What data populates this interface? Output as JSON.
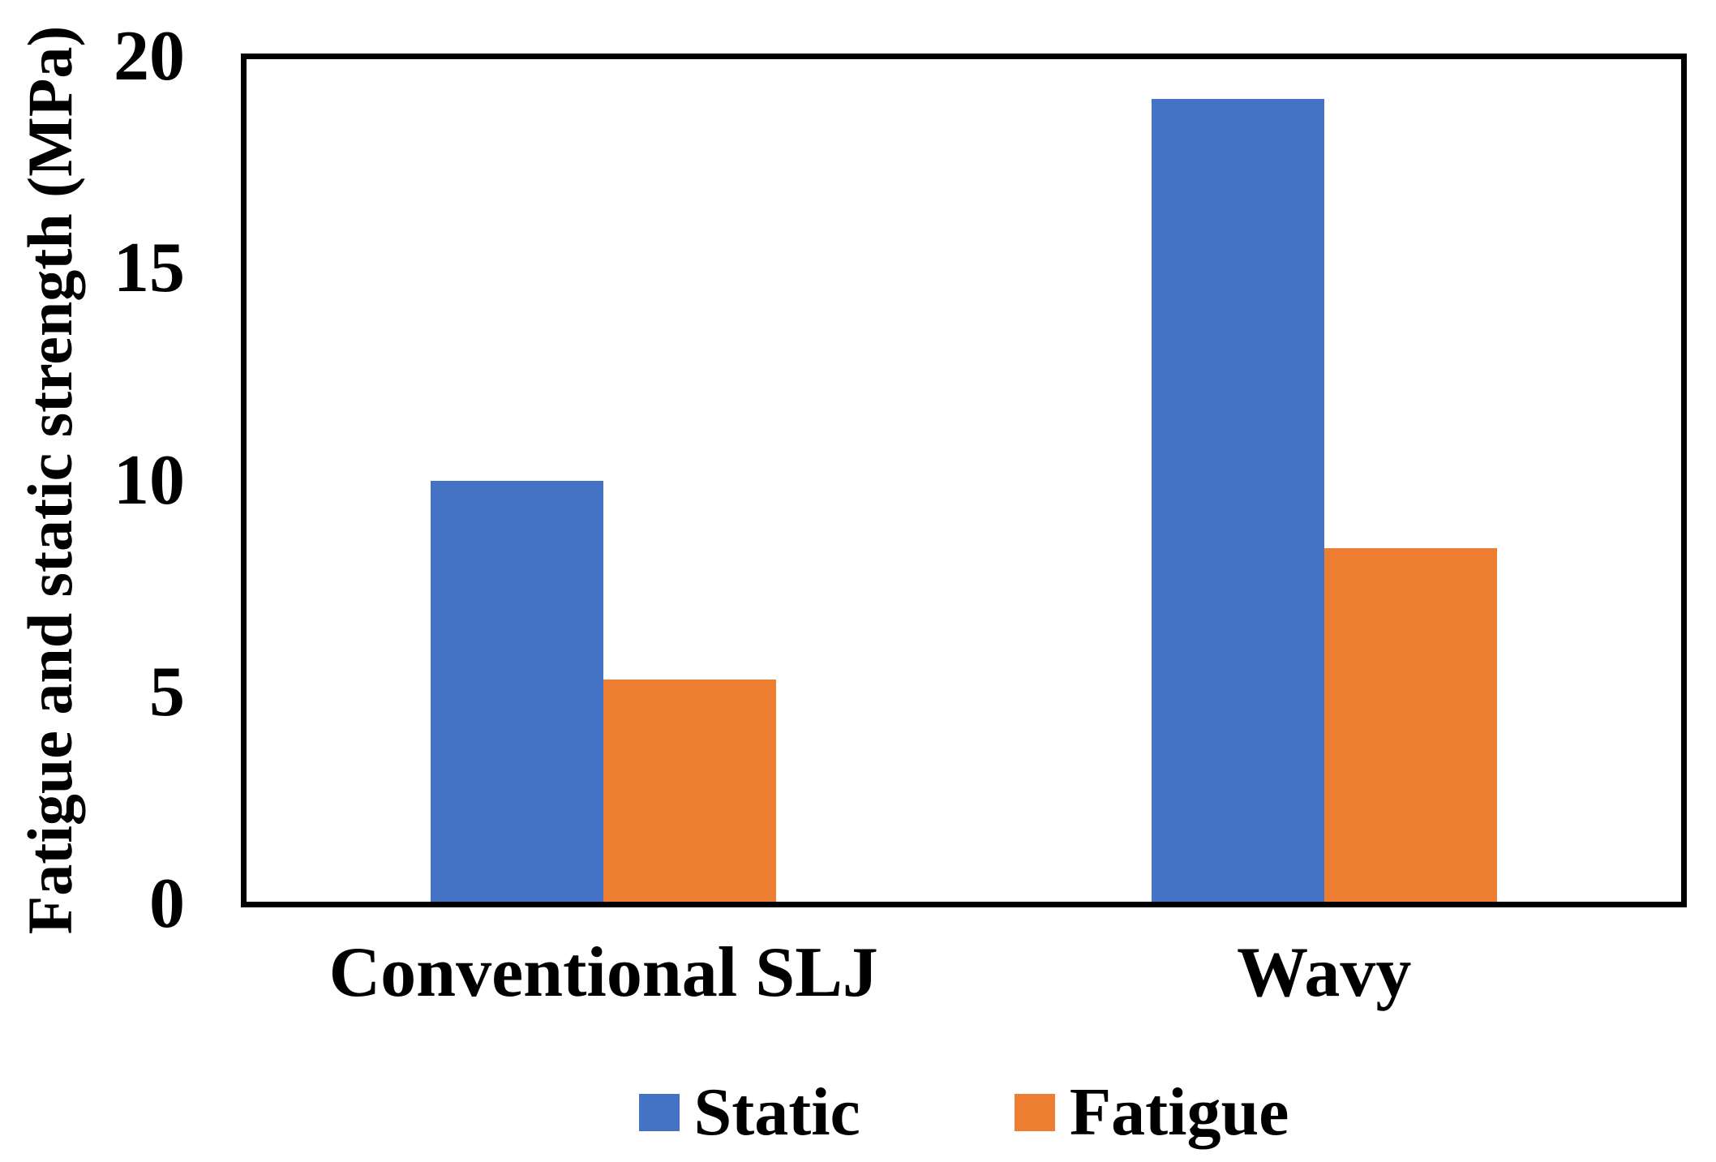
{
  "chart_data": {
    "type": "bar",
    "categories": [
      "Conventional SLJ",
      "Wavy"
    ],
    "series": [
      {
        "name": "Static",
        "color": "#4472C4",
        "values": [
          10.0,
          19.0
        ]
      },
      {
        "name": "Fatigue",
        "color": "#ED7D31",
        "values": [
          5.3,
          8.4
        ]
      }
    ],
    "title": "",
    "xlabel": "",
    "ylabel": "Fatigue and static strength (MPa)",
    "ylim": [
      0,
      20
    ],
    "yticks": [
      0,
      5,
      10,
      15,
      20
    ],
    "grid": false,
    "legend_position": "bottom",
    "frame_color": "#000000",
    "background_color": "#FFFFFF"
  }
}
